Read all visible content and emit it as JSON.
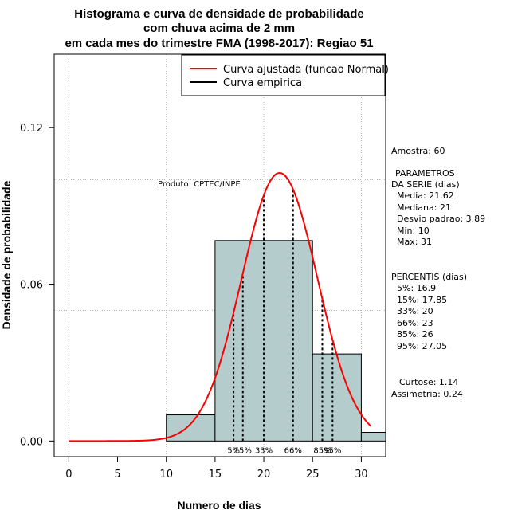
{
  "title_lines": [
    "Histograma e curva de densidade de probabilidade",
    "com chuva acima de 2 mm",
    "em cada mes do trimestre FMA (1998-2017): Regiao 51"
  ],
  "legend": {
    "fit": "Curva ajustada (funcao Normal)",
    "empirical": "Curva empirica"
  },
  "watermark": "Produto: CPTEC/INPE",
  "side_panel": {
    "amostra": "Amostra: 60",
    "params_title_1": "PARAMETROS",
    "params_title_2": "DA SERIE (dias)",
    "media": "Media: 21.62",
    "mediana": "Mediana: 21",
    "desvio": "Desvio padrao: 3.89",
    "min": "Min: 10",
    "max": "Max: 31",
    "percentis_title": "PERCENTIS (dias)",
    "p5": "5%: 16.9",
    "p15": "15%: 17.85",
    "p33": "33%: 20",
    "p66": "66%: 23",
    "p85": "85%: 26",
    "p95": "95%: 27.05",
    "curtose": "Curtose: 1.14",
    "assimetria": "Assimetria: 0.24"
  },
  "chart_data": {
    "type": "histogram",
    "xlabel": "Numero de dias",
    "ylabel": "Densidade de probabilidade",
    "xlim": [
      -1.5,
      32.5
    ],
    "ylim": [
      -0.006,
      0.148
    ],
    "xticks": [
      0,
      5,
      10,
      15,
      20,
      25,
      30
    ],
    "yticks": [
      0.0,
      0.06,
      0.12
    ],
    "ytick_labels": [
      "0.00",
      "0.06",
      "0.12"
    ],
    "grid_x": [
      0,
      10,
      20,
      30
    ],
    "grid_y": [
      0.05,
      0.1
    ],
    "bins": [
      {
        "x0": 10,
        "x1": 15,
        "density": 0.01
      },
      {
        "x0": 15,
        "x1": 25,
        "density": 0.0767
      },
      {
        "x0": 25,
        "x1": 30,
        "density": 0.0333
      },
      {
        "x0": 30,
        "x1": 32.5,
        "density": 0.0033
      }
    ],
    "bar_color": "#b5cccc",
    "normal_fit": {
      "mean": 21.62,
      "sd": 3.89,
      "x_from": 0,
      "x_to": 31,
      "color": "#ff0000"
    },
    "percentiles": [
      {
        "label": "5%",
        "value": 16.9
      },
      {
        "label": "15%",
        "value": 17.85
      },
      {
        "label": "33%",
        "value": 20
      },
      {
        "label": "66%",
        "value": 23
      },
      {
        "label": "85%",
        "value": 26
      },
      {
        "label": "95%",
        "value": 27.05
      }
    ]
  }
}
